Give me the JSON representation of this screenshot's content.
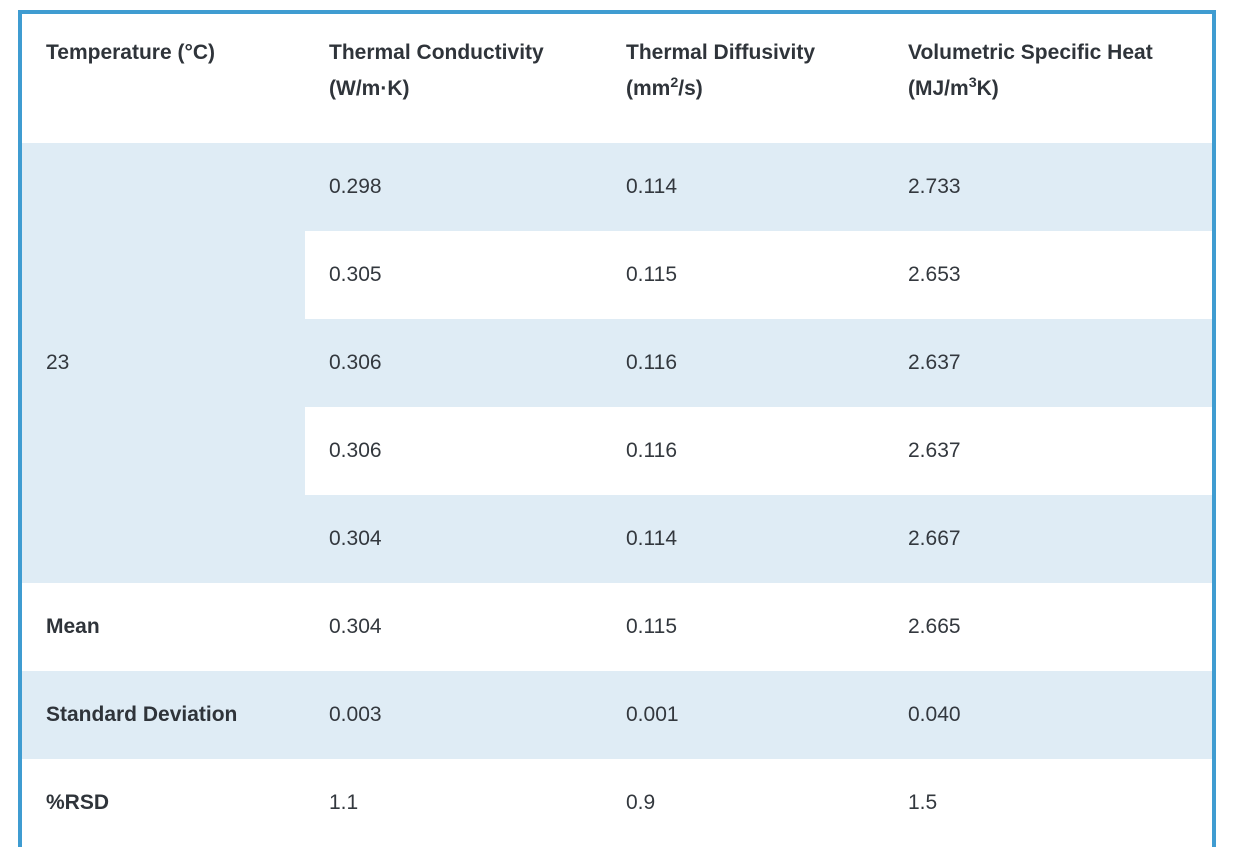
{
  "page": {
    "background_color": "#ffffff",
    "border_color": "#3f9cd1",
    "stripe_color": "#dfecf5",
    "text_color": "#33383e"
  },
  "table": {
    "columns": [
      {
        "label": "Temperature (°C)",
        "unit_pre": "",
        "unit_sup": "",
        "unit_post": ""
      },
      {
        "label": "Thermal Conductivity",
        "unit_pre": "(W/m·K)",
        "unit_sup": "",
        "unit_post": ""
      },
      {
        "label": "Thermal Diffusivity",
        "unit_pre": "(mm",
        "unit_sup": "2",
        "unit_post": "/s)"
      },
      {
        "label": "Volumetric Specific Heat",
        "unit_pre": "(MJ/m",
        "unit_sup": "3",
        "unit_post": "K)"
      }
    ],
    "temperature_value": "23",
    "measurements": [
      {
        "conductivity": "0.298",
        "diffusivity": "0.114",
        "specific_heat": "2.733"
      },
      {
        "conductivity": "0.305",
        "diffusivity": "0.115",
        "specific_heat": "2.653"
      },
      {
        "conductivity": "0.306",
        "diffusivity": "0.116",
        "specific_heat": "2.637"
      },
      {
        "conductivity": "0.306",
        "diffusivity": "0.116",
        "specific_heat": "2.637"
      },
      {
        "conductivity": "0.304",
        "diffusivity": "0.114",
        "specific_heat": "2.667"
      }
    ],
    "summary": [
      {
        "label": "Mean",
        "conductivity": "0.304",
        "diffusivity": "0.115",
        "specific_heat": "2.665"
      },
      {
        "label": "Standard Deviation",
        "conductivity": "0.003",
        "diffusivity": "0.001",
        "specific_heat": "0.040"
      },
      {
        "label": "%RSD",
        "conductivity": "1.1",
        "diffusivity": "0.9",
        "specific_heat": "1.5"
      }
    ]
  }
}
